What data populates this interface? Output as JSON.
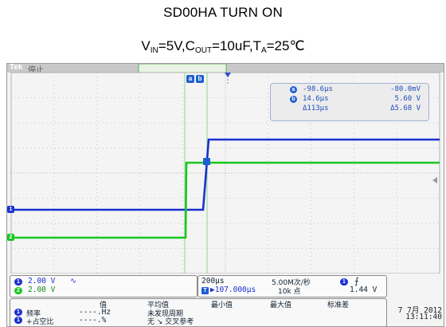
{
  "header": {
    "title": "SD00HA TURN ON",
    "cond_vin": "V",
    "cond_vin_sub": "IN",
    "cond_vin_val": "=5V,C",
    "cond_cout_sub": "OUT",
    "cond_cout_val": "=10uF,T",
    "cond_ta_sub": "A",
    "cond_ta_val": "=25℃"
  },
  "scope": {
    "brand": "Tek",
    "run_state": "停止",
    "cursor_a_tag": "a",
    "cursor_b_tag": "b",
    "readout": {
      "a_badge": "a",
      "a_time": "-98.6µs",
      "a_volt": "-80.0mV",
      "b_badge": "b",
      "b_time": "14.6µs",
      "b_volt": "5.60 V",
      "delta_time": "Δ113µs",
      "delta_volt": "Δ5.68 V"
    },
    "channels": [
      {
        "id": "1",
        "color": "#1a2fd0",
        "scale": "2.00 V",
        "coupling": "∿"
      },
      {
        "id": "2",
        "color": "#18c820",
        "scale": "2.00 V"
      }
    ],
    "timebase": {
      "per_div": "200µs",
      "sample_rate": "5.00M次/秒",
      "trigger_marker": "T",
      "position": "▶107.000µs",
      "record": "10k 点",
      "trigger_channel": "1",
      "trigger_slope": "⨍",
      "trigger_level": "1.44 V"
    },
    "measurements": {
      "headers": [
        "值",
        "平均值",
        "最小值",
        "最大值",
        "标准差"
      ],
      "rows": [
        {
          "ch": "1",
          "name": "频率",
          "value": "----.Hz",
          "status": "未发现周期"
        },
        {
          "ch": "1",
          "name": "+占空比",
          "value": "----.%",
          "status": "无 ↘ 交叉参考"
        }
      ]
    },
    "datetime": {
      "date": "7 7月 2012",
      "time": "13:11:40"
    }
  }
}
